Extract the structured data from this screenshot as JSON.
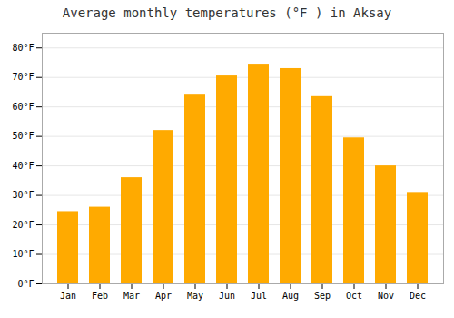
{
  "chart_data": {
    "type": "bar",
    "title": "Average monthly temperatures (°F ) in Aksay",
    "categories": [
      "Jan",
      "Feb",
      "Mar",
      "Apr",
      "May",
      "Jun",
      "Jul",
      "Aug",
      "Sep",
      "Oct",
      "Nov",
      "Dec"
    ],
    "values": [
      24.5,
      26.0,
      36.0,
      52.0,
      64.0,
      70.5,
      74.5,
      73.0,
      63.5,
      49.5,
      40.0,
      31.0
    ],
    "color": "#FFAA00",
    "ylim": [
      0,
      85
    ],
    "yticks": [
      {
        "value": 0,
        "label": "0°F"
      },
      {
        "value": 10,
        "label": "10°F"
      },
      {
        "value": 20,
        "label": "20°F"
      },
      {
        "value": 30,
        "label": "30°F"
      },
      {
        "value": 40,
        "label": "40°F"
      },
      {
        "value": 50,
        "label": "50°F"
      },
      {
        "value": 60,
        "label": "60°F"
      },
      {
        "value": 70,
        "label": "70°F"
      },
      {
        "value": 80,
        "label": "80°F"
      }
    ],
    "grid": true
  }
}
